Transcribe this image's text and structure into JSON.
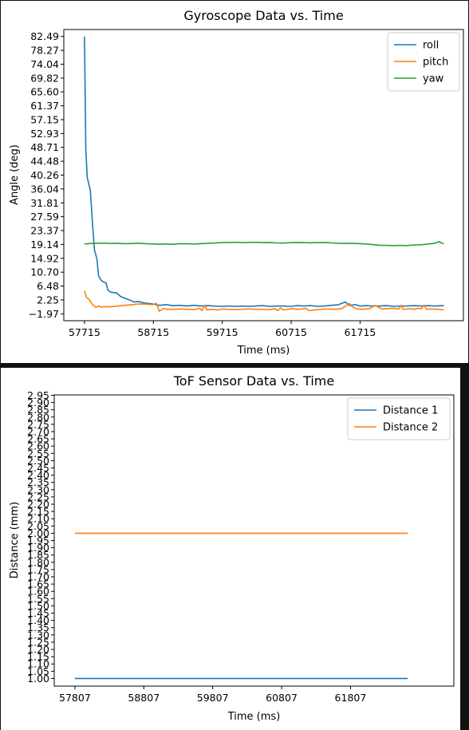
{
  "chart_data": [
    {
      "type": "line",
      "title": "Gyroscope Data vs. Time",
      "xlabel": "Time (ms)",
      "ylabel": "Angle (deg)",
      "xlim": [
        57415,
        63215
      ],
      "ylim": [
        -4.08,
        84.6
      ],
      "xticks": [
        57715,
        58715,
        59715,
        60715,
        61715
      ],
      "yticks": [
        82.49,
        78.27,
        74.04,
        69.82,
        65.6,
        61.37,
        57.15,
        52.93,
        48.71,
        44.48,
        40.26,
        36.04,
        31.81,
        27.59,
        23.37,
        19.14,
        14.92,
        10.7,
        6.48,
        2.25,
        -1.97
      ],
      "ytick_labels": [
        "82.49",
        "78.27",
        "74.04",
        "69.82",
        "65.60",
        "61.37",
        "57.15",
        "52.93",
        "48.71",
        "44.48",
        "40.26",
        "36.04",
        "31.81",
        "27.59",
        "23.37",
        "19.14",
        "14.92",
        "10.70",
        "6.48",
        "2.25",
        "−1.97"
      ],
      "grid": false,
      "legend": "top-right",
      "series": [
        {
          "name": "roll",
          "color": "#1f77b4",
          "points": [
            [
              57715,
              82.49
            ],
            [
              57735,
              48
            ],
            [
              57755,
              39.5
            ],
            [
              57800,
              35.5
            ],
            [
              57830,
              26
            ],
            [
              57860,
              17.5
            ],
            [
              57895,
              14.8
            ],
            [
              57920,
              9.5
            ],
            [
              57960,
              8.2
            ],
            [
              57985,
              7.8
            ],
            [
              58030,
              7.4
            ],
            [
              58055,
              5.2
            ],
            [
              58100,
              4.6
            ],
            [
              58180,
              4.4
            ],
            [
              58240,
              3.3
            ],
            [
              58310,
              2.7
            ],
            [
              58375,
              2.2
            ],
            [
              58440,
              1.6
            ],
            [
              58500,
              1.8
            ],
            [
              58560,
              1.4
            ],
            [
              58640,
              1.2
            ],
            [
              58715,
              1.0
            ],
            [
              58800,
              0.6
            ],
            [
              58900,
              0.8
            ],
            [
              59000,
              0.5
            ],
            [
              59100,
              0.6
            ],
            [
              59200,
              0.4
            ],
            [
              59300,
              0.6
            ],
            [
              59400,
              0.4
            ],
            [
              59500,
              0.5
            ],
            [
              59600,
              0.4
            ],
            [
              59715,
              0.3
            ],
            [
              59800,
              0.4
            ],
            [
              59900,
              0.3
            ],
            [
              60000,
              0.4
            ],
            [
              60100,
              0.3
            ],
            [
              60200,
              0.4
            ],
            [
              60300,
              0.5
            ],
            [
              60400,
              0.3
            ],
            [
              60500,
              0.4
            ],
            [
              60600,
              0.4
            ],
            [
              60715,
              0.3
            ],
            [
              60800,
              0.5
            ],
            [
              60900,
              0.4
            ],
            [
              61000,
              0.5
            ],
            [
              61100,
              0.3
            ],
            [
              61200,
              0.4
            ],
            [
              61300,
              0.6
            ],
            [
              61400,
              0.8
            ],
            [
              61500,
              1.6
            ],
            [
              61560,
              0.6
            ],
            [
              61650,
              0.8
            ],
            [
              61715,
              0.4
            ],
            [
              61800,
              0.5
            ],
            [
              61900,
              0.4
            ],
            [
              62000,
              0.4
            ],
            [
              62100,
              0.5
            ],
            [
              62200,
              0.3
            ],
            [
              62300,
              0.4
            ],
            [
              62400,
              0.4
            ],
            [
              62500,
              0.5
            ],
            [
              62600,
              0.4
            ],
            [
              62700,
              0.5
            ],
            [
              62800,
              0.4
            ],
            [
              62930,
              0.5
            ]
          ]
        },
        {
          "name": "pitch",
          "color": "#ff7f0e",
          "points": [
            [
              57715,
              5.0
            ],
            [
              57745,
              3.0
            ],
            [
              57775,
              2.5
            ],
            [
              57800,
              1.8
            ],
            [
              57840,
              0.6
            ],
            [
              57880,
              0.0
            ],
            [
              57920,
              0.4
            ],
            [
              57960,
              0.1
            ],
            [
              58000,
              0.2
            ],
            [
              58100,
              0.2
            ],
            [
              58200,
              0.4
            ],
            [
              58300,
              0.6
            ],
            [
              58400,
              0.8
            ],
            [
              58500,
              1.0
            ],
            [
              58600,
              1.0
            ],
            [
              58700,
              0.8
            ],
            [
              58760,
              1.2
            ],
            [
              58800,
              -1.2
            ],
            [
              58860,
              -0.4
            ],
            [
              58920,
              -0.6
            ],
            [
              59000,
              -0.6
            ],
            [
              59100,
              -0.5
            ],
            [
              59200,
              -0.6
            ],
            [
              59300,
              -0.7
            ],
            [
              59350,
              -0.5
            ],
            [
              59390,
              -0.3
            ],
            [
              59420,
              -1.0
            ],
            [
              59460,
              0.6
            ],
            [
              59490,
              -0.8
            ],
            [
              59550,
              -0.6
            ],
            [
              59650,
              -0.8
            ],
            [
              59715,
              -0.5
            ],
            [
              59800,
              -0.6
            ],
            [
              59900,
              -0.7
            ],
            [
              60000,
              -0.6
            ],
            [
              60100,
              -0.5
            ],
            [
              60200,
              -0.6
            ],
            [
              60300,
              -0.6
            ],
            [
              60400,
              -0.7
            ],
            [
              60480,
              -0.4
            ],
            [
              60520,
              -1.0
            ],
            [
              60560,
              -0.2
            ],
            [
              60600,
              -0.8
            ],
            [
              60715,
              -0.4
            ],
            [
              60800,
              -0.6
            ],
            [
              60880,
              -0.5
            ],
            [
              60930,
              -0.3
            ],
            [
              60970,
              -1.0
            ],
            [
              61050,
              -0.8
            ],
            [
              61150,
              -0.6
            ],
            [
              61250,
              -0.5
            ],
            [
              61350,
              -0.6
            ],
            [
              61450,
              -0.4
            ],
            [
              61520,
              0.6
            ],
            [
              61560,
              1.2
            ],
            [
              61600,
              0.2
            ],
            [
              61660,
              -0.4
            ],
            [
              61715,
              -0.6
            ],
            [
              61800,
              -0.5
            ],
            [
              61850,
              -0.4
            ],
            [
              61880,
              -0.1
            ],
            [
              61920,
              0.6
            ],
            [
              61960,
              0.3
            ],
            [
              62000,
              -0.2
            ],
            [
              62040,
              -0.5
            ],
            [
              62100,
              -0.4
            ],
            [
              62200,
              -0.3
            ],
            [
              62280,
              -0.5
            ],
            [
              62310,
              0.6
            ],
            [
              62340,
              -0.6
            ],
            [
              62400,
              -0.5
            ],
            [
              62450,
              -0.4
            ],
            [
              62500,
              -0.6
            ],
            [
              62560,
              -0.3
            ],
            [
              62600,
              -0.5
            ],
            [
              62640,
              0.6
            ],
            [
              62680,
              -0.6
            ],
            [
              62750,
              -0.5
            ],
            [
              62850,
              -0.6
            ],
            [
              62930,
              -0.8
            ]
          ]
        },
        {
          "name": "yaw",
          "color": "#2ca02c",
          "points": [
            [
              57715,
              19.3
            ],
            [
              57800,
              19.45
            ],
            [
              57900,
              19.5
            ],
            [
              58000,
              19.55
            ],
            [
              58100,
              19.45
            ],
            [
              58200,
              19.5
            ],
            [
              58300,
              19.4
            ],
            [
              58400,
              19.45
            ],
            [
              58500,
              19.5
            ],
            [
              58600,
              19.4
            ],
            [
              58715,
              19.3
            ],
            [
              58800,
              19.2
            ],
            [
              58900,
              19.3
            ],
            [
              59000,
              19.2
            ],
            [
              59100,
              19.4
            ],
            [
              59200,
              19.35
            ],
            [
              59300,
              19.3
            ],
            [
              59400,
              19.4
            ],
            [
              59500,
              19.5
            ],
            [
              59600,
              19.55
            ],
            [
              59715,
              19.7
            ],
            [
              59800,
              19.75
            ],
            [
              59900,
              19.8
            ],
            [
              60000,
              19.7
            ],
            [
              60100,
              19.75
            ],
            [
              60200,
              19.8
            ],
            [
              60300,
              19.7
            ],
            [
              60400,
              19.75
            ],
            [
              60500,
              19.6
            ],
            [
              60600,
              19.55
            ],
            [
              60715,
              19.7
            ],
            [
              60800,
              19.75
            ],
            [
              60900,
              19.7
            ],
            [
              61000,
              19.65
            ],
            [
              61100,
              19.7
            ],
            [
              61200,
              19.75
            ],
            [
              61300,
              19.6
            ],
            [
              61400,
              19.5
            ],
            [
              61500,
              19.45
            ],
            [
              61600,
              19.5
            ],
            [
              61715,
              19.4
            ],
            [
              61800,
              19.3
            ],
            [
              61900,
              19.1
            ],
            [
              62000,
              18.9
            ],
            [
              62100,
              18.85
            ],
            [
              62200,
              18.8
            ],
            [
              62300,
              18.85
            ],
            [
              62400,
              18.8
            ],
            [
              62500,
              19.0
            ],
            [
              62600,
              19.05
            ],
            [
              62700,
              19.3
            ],
            [
              62800,
              19.5
            ],
            [
              62860,
              20.0
            ],
            [
              62930,
              19.3
            ]
          ]
        }
      ]
    },
    {
      "type": "line",
      "title": "ToF Sensor Data vs. Time",
      "xlabel": "Time (ms)",
      "ylabel": "Distance (mm)",
      "xlim": [
        57507,
        63307
      ],
      "ylim": [
        0.9475,
        2.9525
      ],
      "xticks": [
        57807,
        58807,
        59807,
        60807,
        61807
      ],
      "yticks": [
        1.0,
        1.05,
        1.1,
        1.15,
        1.2,
        1.25,
        1.3,
        1.35,
        1.4,
        1.45,
        1.5,
        1.55,
        1.6,
        1.65,
        1.7,
        1.75,
        1.8,
        1.85,
        1.9,
        1.95,
        2.0,
        2.05,
        2.1,
        2.15,
        2.2,
        2.25,
        2.3,
        2.35,
        2.4,
        2.45,
        2.5,
        2.55,
        2.6,
        2.65,
        2.7,
        2.75,
        2.8,
        2.85,
        2.9,
        2.95
      ],
      "ytick_labels": [
        "1.00",
        "1.05",
        "1.10",
        "1.15",
        "1.20",
        "1.25",
        "1.30",
        "1.35",
        "1.40",
        "1.45",
        "1.50",
        "1.55",
        "1.60",
        "1.65",
        "1.70",
        "1.75",
        "1.80",
        "1.85",
        "1.90",
        "1.95",
        "2.00",
        "2.05",
        "2.10",
        "2.15",
        "2.20",
        "2.25",
        "2.30",
        "2.35",
        "2.40",
        "2.45",
        "2.50",
        "2.55",
        "2.60",
        "2.65",
        "2.70",
        "2.75",
        "2.80",
        "2.85",
        "2.90",
        "2.95"
      ],
      "grid": false,
      "legend": "top-right",
      "series": [
        {
          "name": "Distance 1",
          "color": "#1f77b4",
          "points": [
            [
              57807,
              1.0
            ],
            [
              62637,
              1.0
            ]
          ]
        },
        {
          "name": "Distance 2",
          "color": "#ff7f0e",
          "points": [
            [
              57807,
              2.0
            ],
            [
              62637,
              2.0
            ]
          ]
        }
      ]
    }
  ]
}
